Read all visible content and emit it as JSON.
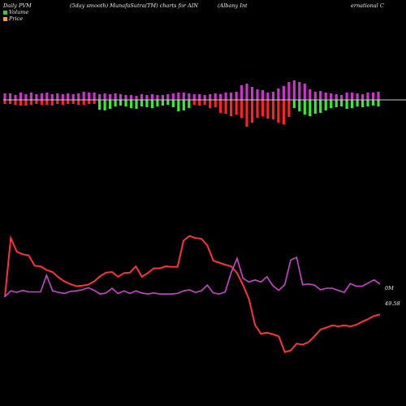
{
  "header": {
    "left": "Daily PVM",
    "middle": "(5day smooth) MunafaSutra(TM) charts for AIN",
    "company_part1": "(Albany Int",
    "company_part2": "ernational C"
  },
  "legend": {
    "volume_label": "Volume",
    "price_label": "Price",
    "volume_color": "#33cc33",
    "price_color": "#ff9933"
  },
  "colors": {
    "background": "#000000",
    "volume_up": "#cc33cc",
    "volume_down_red": "#ff2222",
    "volume_down_green": "#33ee33",
    "price_line": "#ff3333",
    "pvm_line": "#cc44cc",
    "baseline": "#cccccc"
  },
  "chart_data": {
    "type": "bar",
    "volume_bars": {
      "up": [
        8,
        8,
        6,
        9,
        7,
        9,
        7,
        8,
        9,
        7,
        8,
        7,
        8,
        7,
        8,
        10,
        9,
        9,
        7,
        8,
        7,
        8,
        7,
        6,
        6,
        5,
        7,
        6,
        7,
        6,
        6,
        7,
        8,
        9,
        9,
        8,
        7,
        7,
        6,
        7,
        8,
        7,
        9,
        9,
        10,
        18,
        20,
        16,
        13,
        12,
        9,
        10,
        14,
        17,
        22,
        24,
        22,
        20,
        13,
        10,
        11,
        9,
        8,
        7,
        6,
        9,
        9,
        8,
        7,
        9,
        9,
        10
      ],
      "down": [
        5,
        5,
        6,
        7,
        7,
        6,
        5,
        6,
        6,
        7,
        5,
        6,
        5,
        5,
        6,
        6,
        5,
        5,
        12,
        13,
        11,
        8,
        7,
        8,
        10,
        11,
        8,
        9,
        10,
        8,
        7,
        6,
        9,
        14,
        13,
        10,
        6,
        7,
        6,
        10,
        9,
        16,
        17,
        20,
        18,
        22,
        33,
        28,
        22,
        20,
        23,
        24,
        28,
        30,
        21,
        10,
        14,
        18,
        20,
        17,
        16,
        13,
        10,
        9,
        8,
        11,
        10,
        8,
        9,
        8,
        7,
        8
      ],
      "down_color": [
        "r",
        "r",
        "r",
        "r",
        "r",
        "r",
        "r",
        "r",
        "r",
        "r",
        "r",
        "r",
        "r",
        "r",
        "r",
        "r",
        "r",
        "r",
        "g",
        "g",
        "g",
        "g",
        "g",
        "g",
        "g",
        "g",
        "g",
        "g",
        "g",
        "g",
        "g",
        "g",
        "g",
        "g",
        "g",
        "g",
        "r",
        "r",
        "r",
        "r",
        "r",
        "r",
        "r",
        "r",
        "r",
        "r",
        "r",
        "r",
        "r",
        "r",
        "r",
        "r",
        "r",
        "r",
        "r",
        "g",
        "g",
        "g",
        "g",
        "g",
        "g",
        "g",
        "g",
        "g",
        "g",
        "g",
        "g",
        "g",
        "g",
        "g",
        "g",
        "g"
      ]
    },
    "price_series": {
      "name": "Price",
      "last_label": "49.58",
      "values": [
        55.2,
        66.5,
        63.9,
        63.4,
        63.2,
        61.2,
        61.1,
        60.4,
        60.0,
        59.0,
        58.2,
        57.7,
        57.3,
        57.4,
        57.6,
        58.2,
        59.2,
        59.9,
        60.0,
        59.1,
        59.8,
        59.9,
        61.1,
        59.1,
        59.8,
        60.7,
        60.7,
        61.1,
        61.0,
        61.0,
        66.0,
        66.9,
        66.5,
        66.4,
        65.1,
        62.2,
        61.8,
        61.4,
        61.1,
        59.8,
        57.5,
        54.8,
        49.9,
        48.2,
        48.4,
        48.1,
        47.7,
        44.7,
        45.0,
        46.3,
        46.1,
        46.6,
        47.7,
        49.0,
        49.4,
        49.8,
        49.6,
        49.8,
        49.6,
        49.9,
        50.5,
        51.0,
        51.6,
        51.9
      ],
      "line_color": "#ff3333"
    },
    "pvm_series": {
      "name": "PVM",
      "last_label": "0M",
      "values": [
        55.3,
        56.4,
        56.1,
        56.5,
        56.2,
        56.2,
        56.2,
        59.4,
        56.4,
        56.1,
        55.9,
        56.3,
        56.4,
        56.6,
        57.0,
        56.5,
        55.8,
        56.0,
        56.9,
        55.9,
        56.4,
        55.9,
        56.4,
        56.0,
        55.8,
        56.0,
        55.8,
        55.8,
        55.8,
        55.9,
        56.4,
        56.6,
        56.1,
        56.4,
        57.5,
        56.0,
        55.8,
        56.2,
        59.9,
        62.6,
        58.8,
        58.1,
        58.5,
        58.1,
        59.1,
        57.4,
        56.5,
        57.6,
        62.3,
        62.8,
        57.6,
        57.7,
        57.5,
        56.6,
        56.9,
        56.9,
        56.5,
        56.1,
        57.8,
        57.3,
        57.3,
        57.9,
        58.5,
        57.7
      ],
      "line_color": "#cc44cc"
    }
  }
}
